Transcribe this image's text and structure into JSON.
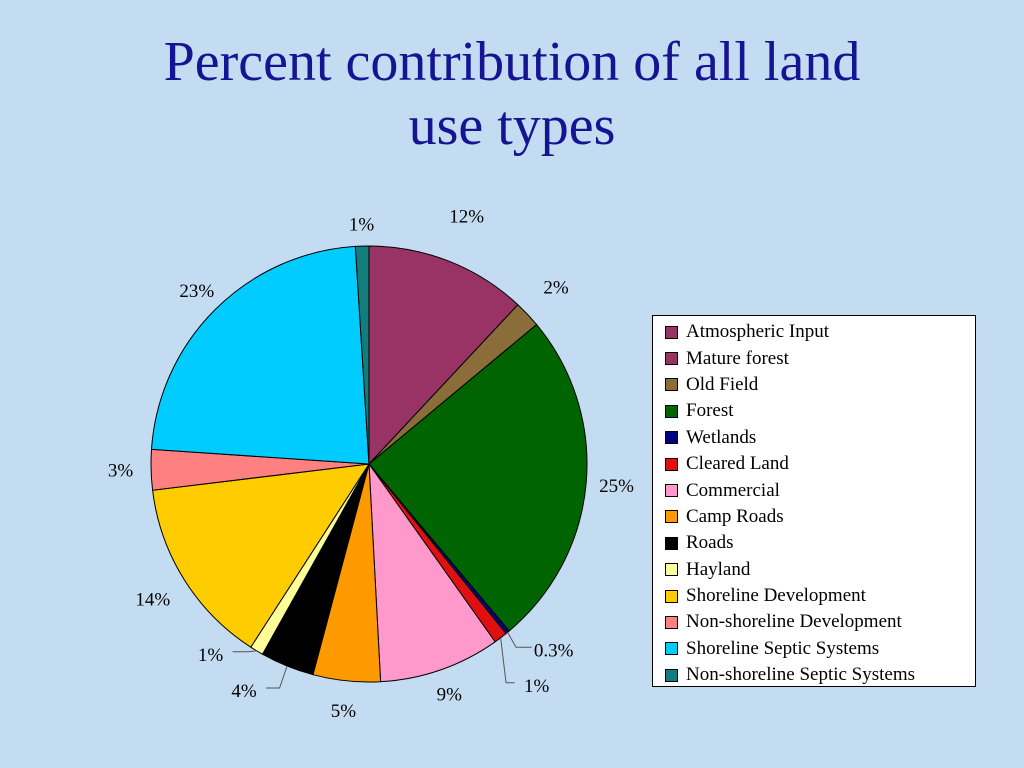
{
  "slide": {
    "title_line1": "Percent contribution of all land",
    "title_line2": "use types"
  },
  "chart_data": {
    "type": "pie",
    "title": "Percent contribution of all land use types",
    "unit": "%",
    "legend_position": "right",
    "slices": [
      {
        "name": "Atmospheric Input",
        "value": 12,
        "label": "12%",
        "color": "#993366"
      },
      {
        "name": "Mature forest",
        "value": 0,
        "label": "",
        "color": "#993366"
      },
      {
        "name": "Old Field",
        "value": 2,
        "label": "2%",
        "color": "#8b6d3a"
      },
      {
        "name": "Forest",
        "value": 25,
        "label": "25%",
        "color": "#006400"
      },
      {
        "name": "Wetlands",
        "value": 0.3,
        "label": "0.3%",
        "color": "#000080"
      },
      {
        "name": "Cleared Land",
        "value": 1,
        "label": "1%",
        "color": "#e01010"
      },
      {
        "name": "Commercial",
        "value": 9,
        "label": "9%",
        "color": "#ff99cc"
      },
      {
        "name": "Camp Roads",
        "value": 5,
        "label": "5%",
        "color": "#ff9900"
      },
      {
        "name": "Roads",
        "value": 4,
        "label": "4%",
        "color": "#000000"
      },
      {
        "name": "Hayland",
        "value": 1,
        "label": "1%",
        "color": "#ffff99"
      },
      {
        "name": "Shoreline Development",
        "value": 14,
        "label": "14%",
        "color": "#ffcc00"
      },
      {
        "name": "Non-shoreline Development",
        "value": 3,
        "label": "3%",
        "color": "#ff8080"
      },
      {
        "name": "Shoreline Septic Systems",
        "value": 23,
        "label": "23%",
        "color": "#00ccff"
      },
      {
        "name": "Non-shoreline Septic Systems",
        "value": 1,
        "label": "1%",
        "color": "#137d7d"
      }
    ]
  }
}
